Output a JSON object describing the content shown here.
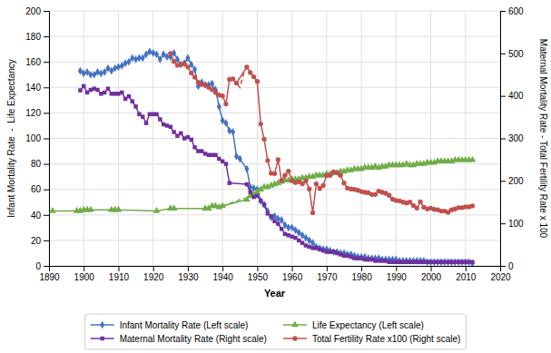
{
  "chart_data": {
    "type": "line",
    "xlabel": "Year",
    "ylabel": "Infant Mortality Rate  -  Life Expectancy",
    "y2label": "Maternal Mortality Rate - Total Fertility Rate x 100",
    "xlim": [
      1890,
      2020
    ],
    "ylim": [
      0,
      200
    ],
    "y2lim": [
      0,
      600
    ],
    "xticks": [
      1890,
      1900,
      1910,
      1920,
      1930,
      1940,
      1950,
      1960,
      1970,
      1980,
      1990,
      2000,
      2010,
      2020
    ],
    "yticks": [
      0,
      20,
      40,
      60,
      80,
      100,
      120,
      140,
      160,
      180,
      200
    ],
    "y2ticks": [
      0,
      100,
      200,
      300,
      400,
      500,
      600
    ],
    "grid": true,
    "series": [
      {
        "name": "Infant Mortality Rate (Left scale)",
        "color": "#4472C4",
        "marker": "diamond",
        "line_style": "solid",
        "x": [
          1899,
          1900,
          1901,
          1902,
          1903,
          1904,
          1905,
          1906,
          1907,
          1908,
          1909,
          1910,
          1911,
          1912,
          1913,
          1914,
          1915,
          1916,
          1917,
          1918,
          1919,
          1920,
          1921,
          1922,
          1923,
          1924,
          1925,
          1926,
          1927,
          1928,
          1929,
          1930,
          1931,
          1932,
          1933,
          1934,
          1935,
          1936,
          1937,
          1938,
          1939,
          1940,
          1941,
          1942,
          1943,
          1944,
          1945,
          1947,
          1948,
          1949,
          1950,
          1951,
          1952,
          1953,
          1954,
          1955,
          1956,
          1957,
          1958,
          1959,
          1960,
          1961,
          1962,
          1963,
          1964,
          1965,
          1966,
          1967,
          1968,
          1969,
          1970,
          1971,
          1972,
          1973,
          1974,
          1975,
          1976,
          1977,
          1978,
          1979,
          1980,
          1981,
          1982,
          1983,
          1984,
          1985,
          1986,
          1987,
          1988,
          1989,
          1990,
          1991,
          1992,
          1993,
          1994,
          1995,
          1996,
          1997,
          1998,
          1999,
          2000,
          2001,
          2002,
          2003,
          2004,
          2005,
          2006,
          2007,
          2008,
          2009,
          2010,
          2011,
          2012
        ],
        "values": [
          153,
          151,
          152,
          150,
          150,
          152,
          151,
          152,
          155,
          153,
          155,
          156,
          157,
          159,
          160,
          163,
          162,
          163,
          163,
          166,
          168,
          167,
          166,
          162,
          166,
          164,
          164,
          167,
          162,
          158,
          159,
          163,
          158,
          154,
          141,
          144,
          142,
          142,
          143,
          138,
          125,
          114,
          112,
          106,
          105,
          86,
          84,
          76,
          62,
          61,
          60,
          51,
          48,
          43,
          38,
          39,
          37,
          36,
          32,
          30,
          30,
          28,
          26,
          24,
          22,
          20,
          18,
          15,
          14,
          13,
          13,
          12,
          11,
          11,
          10,
          10,
          9,
          9,
          8,
          7,
          7,
          7,
          6,
          6,
          6,
          6,
          5,
          5,
          5,
          5,
          5,
          4,
          4,
          4,
          4,
          4,
          4,
          4,
          4,
          3,
          3,
          3,
          3,
          3,
          3,
          3,
          3,
          3,
          3,
          3,
          3,
          3,
          2
        ]
      },
      {
        "name": "Life Expectancy (Left scale)",
        "color": "#70AD47",
        "marker": "triangle",
        "line_style": "solid",
        "x": [
          1891,
          1898,
          1899,
          1900,
          1901,
          1902,
          1908,
          1909,
          1910,
          1921,
          1925,
          1926,
          1935,
          1936,
          1937,
          1938,
          1939,
          1940,
          1947,
          1948,
          1949,
          1950,
          1951,
          1952,
          1953,
          1954,
          1955,
          1956,
          1957,
          1958,
          1959,
          1960,
          1961,
          1962,
          1963,
          1964,
          1965,
          1966,
          1967,
          1968,
          1969,
          1970,
          1971,
          1972,
          1973,
          1974,
          1975,
          1976,
          1977,
          1978,
          1979,
          1980,
          1981,
          1982,
          1983,
          1984,
          1985,
          1986,
          1987,
          1988,
          1989,
          1990,
          1991,
          1992,
          1993,
          1994,
          1995,
          1996,
          1997,
          1998,
          1999,
          2000,
          2001,
          2002,
          2003,
          2004,
          2005,
          2006,
          2007,
          2008,
          2009,
          2010,
          2011,
          2012
        ],
        "values": [
          43,
          43,
          43,
          44,
          44,
          44,
          44,
          44,
          44,
          43,
          45,
          45,
          45,
          45,
          47,
          47,
          46,
          47,
          52,
          55,
          56,
          58,
          60,
          62,
          62,
          63,
          64,
          65,
          66,
          67,
          67,
          68,
          68,
          68,
          69,
          69,
          70,
          70,
          71,
          71,
          71,
          72,
          72,
          73,
          73,
          74,
          74,
          75,
          75,
          76,
          76,
          76,
          77,
          77,
          77,
          78,
          77,
          78,
          78,
          79,
          79,
          79,
          79,
          79,
          80,
          79,
          79,
          80,
          80,
          80,
          81,
          81,
          81,
          82,
          82,
          82,
          82,
          82,
          83,
          83,
          83,
          83,
          83,
          83
        ]
      },
      {
        "color": "#70AD47",
        "marker": "none",
        "line_style": "dashed",
        "x": [
          1940,
          1941,
          1942,
          1943,
          1944,
          1945,
          1946,
          1947
        ],
        "values": [
          47,
          48,
          49,
          50,
          51,
          52,
          53,
          52
        ]
      },
      {
        "name": "Maternal Mortality Rate (Right scale)",
        "color": "#7030A0",
        "marker": "square",
        "line_style": "solid",
        "axis": "y2",
        "x": [
          1899,
          1900,
          1901,
          1902,
          1903,
          1904,
          1905,
          1906,
          1907,
          1908,
          1909,
          1910,
          1911,
          1912,
          1913,
          1914,
          1915,
          1916,
          1917,
          1918,
          1919,
          1920,
          1921,
          1922,
          1923,
          1924,
          1925,
          1926,
          1927,
          1928,
          1929,
          1930,
          1931,
          1932,
          1933,
          1934,
          1935,
          1936,
          1937,
          1938,
          1939,
          1940,
          1941,
          1942,
          1947,
          1948,
          1949,
          1950,
          1951,
          1952,
          1953,
          1954,
          1955,
          1956,
          1957,
          1958,
          1959,
          1960,
          1961,
          1962,
          1963,
          1964,
          1965,
          1966,
          1967,
          1968,
          1969,
          1970,
          1971,
          1972,
          1973,
          1974,
          1975,
          1976,
          1977,
          1978,
          1979,
          1980,
          1981,
          1982,
          1983,
          1984,
          1985,
          1986,
          1987,
          1988,
          1989,
          1990,
          1991,
          1992,
          1993,
          1994,
          1995,
          1996,
          1997,
          1998,
          1999,
          2000,
          2001,
          2002,
          2003,
          2004,
          2005,
          2006,
          2007,
          2008,
          2009,
          2010,
          2011,
          2012
        ],
        "values": [
          413,
          423,
          408,
          414,
          417,
          414,
          405,
          408,
          417,
          405,
          405,
          405,
          408,
          393,
          399,
          387,
          375,
          357,
          351,
          336,
          357,
          357,
          357,
          345,
          333,
          330,
          327,
          315,
          306,
          312,
          300,
          303,
          297,
          279,
          270,
          270,
          264,
          261,
          261,
          261,
          252,
          246,
          240,
          195,
          192,
          174,
          162,
          165,
          153,
          144,
          123,
          117,
          105,
          99,
          87,
          75,
          72,
          69,
          66,
          60,
          54,
          48,
          45,
          42,
          42,
          39,
          36,
          33,
          33,
          33,
          30,
          27,
          24,
          24,
          21,
          18,
          18,
          18,
          15,
          15,
          15,
          12,
          12,
          12,
          12,
          9,
          9,
          9,
          9,
          9,
          9,
          9,
          9,
          9,
          9,
          9,
          9,
          9,
          9,
          9,
          9,
          9,
          9,
          9,
          9,
          9,
          9,
          9,
          9,
          9
        ]
      },
      {
        "name": "Total Fertility Rate x100 (Right scale)",
        "color": "#C0504D",
        "marker": "circle",
        "line_style": "solid",
        "axis": "y2",
        "x": [
          1925,
          1926,
          1927,
          1928,
          1929,
          1930,
          1931,
          1932,
          1933,
          1934,
          1935,
          1936,
          1937,
          1938,
          1939,
          1940,
          1941,
          1942,
          1943,
          1944,
          1947,
          1948,
          1949,
          1950,
          1951,
          1952,
          1953,
          1954,
          1955,
          1956,
          1957,
          1958,
          1959,
          1960,
          1961,
          1962,
          1963,
          1964,
          1965,
          1966,
          1967,
          1968,
          1969,
          1970,
          1971,
          1972,
          1973,
          1974,
          1975,
          1976,
          1977,
          1978,
          1979,
          1980,
          1981,
          1982,
          1983,
          1984,
          1985,
          1986,
          1987,
          1988,
          1989,
          1990,
          1991,
          1992,
          1993,
          1994,
          1995,
          1996,
          1997,
          1998,
          1999,
          2000,
          2001,
          2002,
          2003,
          2004,
          2005,
          2006,
          2007,
          2008,
          2009,
          2010,
          2011,
          2012
        ],
        "values": [
          500,
          481,
          472,
          474,
          475,
          468,
          454,
          444,
          432,
          427,
          426,
          420,
          415,
          408,
          402,
          400,
          381,
          439,
          440,
          430,
          468,
          455,
          445,
          434,
          334,
          298,
          248,
          218,
          217,
          250,
          201,
          213,
          223,
          200,
          196,
          198,
          193,
          200,
          181,
          125,
          193,
          182,
          189,
          213,
          213,
          221,
          219,
          213,
          195,
          183,
          181,
          180,
          178,
          175,
          173,
          172,
          168,
          168,
          176,
          173,
          171,
          166,
          157,
          154,
          153,
          150,
          148,
          150,
          142,
          136,
          151,
          138,
          134,
          136,
          133,
          132,
          129,
          129,
          126,
          132,
          134,
          137,
          137,
          139,
          139,
          141
        ]
      },
      {
        "color": "#C0504D",
        "marker": "none",
        "line_style": "dashed",
        "axis": "y2",
        "x": [
          1943,
          1944,
          1945,
          1946,
          1947
        ],
        "values": [
          440,
          430,
          420,
          450,
          468
        ]
      }
    ]
  }
}
